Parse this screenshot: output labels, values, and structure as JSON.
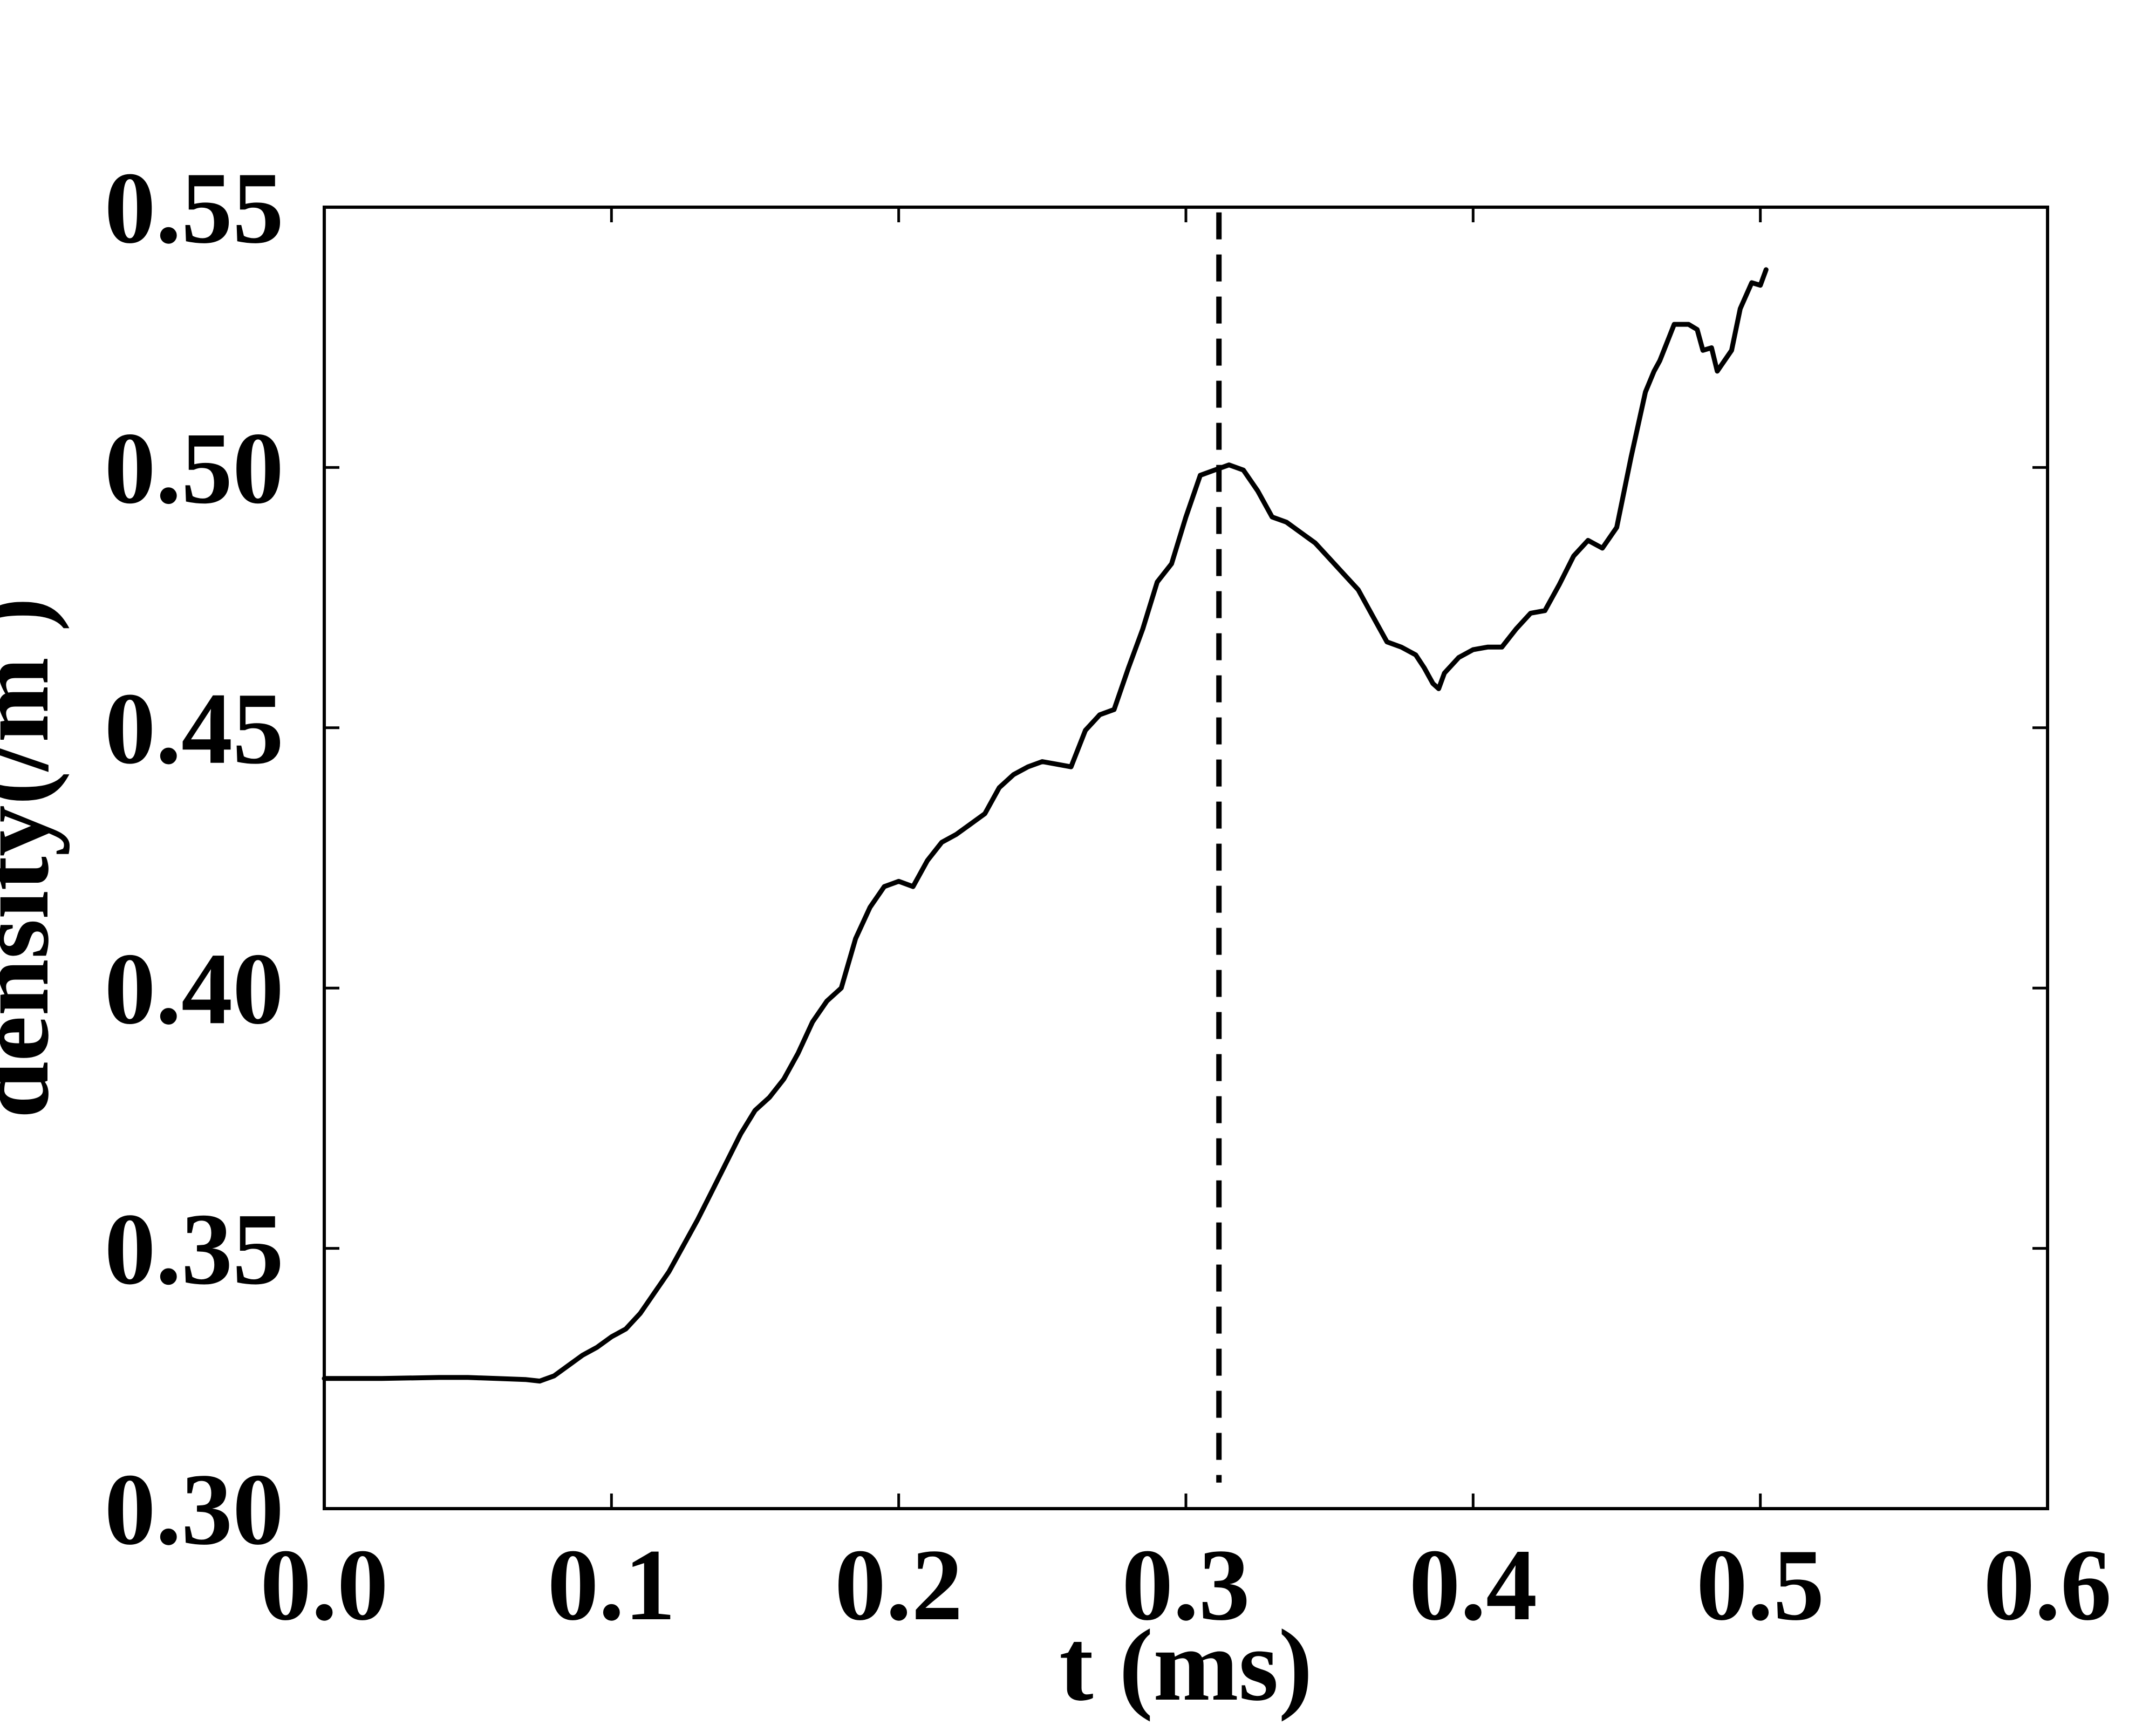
{
  "chart_data": {
    "type": "line",
    "xlabel": "t (ms)",
    "ylabel": "density(/m )",
    "xlim": [
      0.0,
      0.6
    ],
    "ylim": [
      0.3,
      0.55
    ],
    "x_ticks": [
      "0.0",
      "0.1",
      "0.2",
      "0.3",
      "0.4",
      "0.5",
      "0.6"
    ],
    "y_ticks": [
      "0.30",
      "0.35",
      "0.40",
      "0.45",
      "0.50",
      "0.55"
    ],
    "grid": false,
    "line_color": "#000000",
    "vline": {
      "x": 0.3115,
      "style": "dashed",
      "ymin": 0.305,
      "ymax": 0.549
    },
    "series": [
      {
        "x": [
          0.0,
          0.02,
          0.04,
          0.05,
          0.06,
          0.07,
          0.075,
          0.08,
          0.085,
          0.09,
          0.095,
          0.1,
          0.105,
          0.11,
          0.115,
          0.12,
          0.125,
          0.13,
          0.135,
          0.14,
          0.145,
          0.15,
          0.155,
          0.16,
          0.165,
          0.17,
          0.175,
          0.18,
          0.185,
          0.19,
          0.195,
          0.2,
          0.205,
          0.21,
          0.215,
          0.22,
          0.225,
          0.23,
          0.235,
          0.24,
          0.245,
          0.25,
          0.255,
          0.26,
          0.265,
          0.27,
          0.275,
          0.28,
          0.285,
          0.29,
          0.295,
          0.3,
          0.305,
          0.31,
          0.315,
          0.32,
          0.325,
          0.33,
          0.335,
          0.34,
          0.345,
          0.35,
          0.355,
          0.36,
          0.365,
          0.37,
          0.375,
          0.38,
          0.383,
          0.386,
          0.388,
          0.39,
          0.395,
          0.4,
          0.405,
          0.41,
          0.415,
          0.42,
          0.425,
          0.43,
          0.435,
          0.44,
          0.445,
          0.45,
          0.455,
          0.46,
          0.463,
          0.465,
          0.47,
          0.475,
          0.478,
          0.48,
          0.483,
          0.485,
          0.49,
          0.493,
          0.497,
          0.5,
          0.502
        ],
        "y": [
          0.325,
          0.325,
          0.3252,
          0.3252,
          0.325,
          0.3248,
          0.3245,
          0.3255,
          0.3275,
          0.3295,
          0.331,
          0.333,
          0.3345,
          0.3375,
          0.3415,
          0.3455,
          0.3505,
          0.3555,
          0.361,
          0.3665,
          0.372,
          0.3765,
          0.379,
          0.3825,
          0.3875,
          0.3935,
          0.3975,
          0.4,
          0.4095,
          0.4155,
          0.4195,
          0.4205,
          0.4195,
          0.4245,
          0.428,
          0.4295,
          0.4315,
          0.4335,
          0.4385,
          0.441,
          0.4425,
          0.4435,
          0.443,
          0.4425,
          0.4495,
          0.4525,
          0.4535,
          0.4615,
          0.469,
          0.478,
          0.4815,
          0.4905,
          0.4985,
          0.4995,
          0.5005,
          0.4995,
          0.4955,
          0.4905,
          0.4895,
          0.4875,
          0.4855,
          0.4825,
          0.4795,
          0.4765,
          0.4715,
          0.4665,
          0.4655,
          0.464,
          0.4615,
          0.4585,
          0.4575,
          0.4605,
          0.4635,
          0.465,
          0.4655,
          0.4655,
          0.469,
          0.472,
          0.4725,
          0.4775,
          0.483,
          0.486,
          0.4845,
          0.4885,
          0.502,
          0.5145,
          0.5185,
          0.5205,
          0.5275,
          0.5275,
          0.5265,
          0.5225,
          0.523,
          0.5185,
          0.5225,
          0.5305,
          0.5355,
          0.535,
          0.538
        ]
      }
    ]
  }
}
